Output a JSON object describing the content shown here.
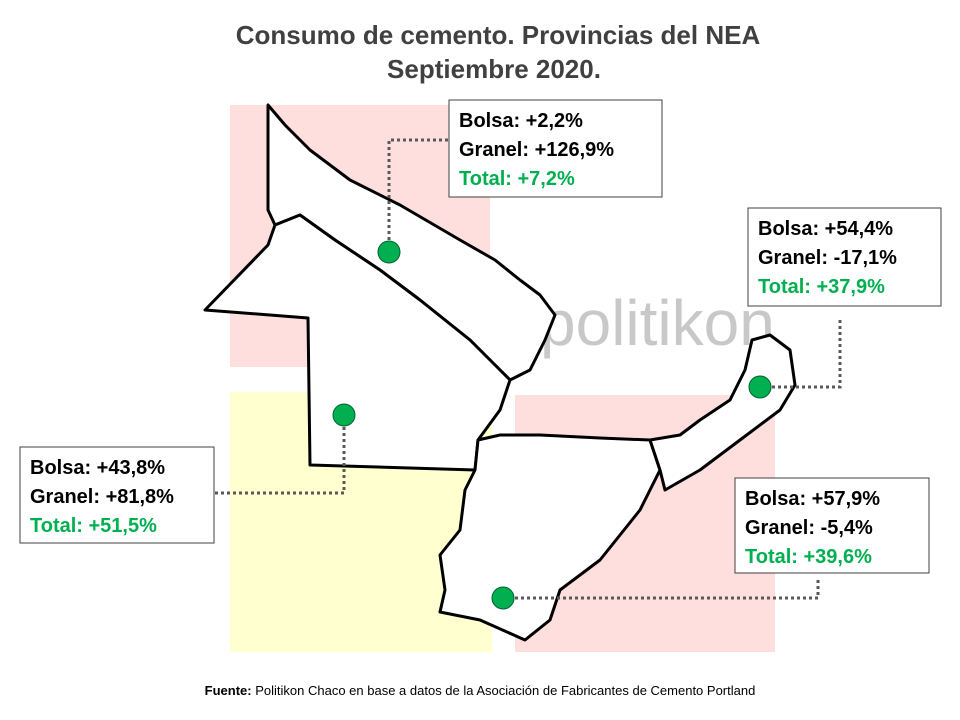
{
  "title": [
    "Consumo de cemento. Provincias del NEA",
    "Septiembre 2020."
  ],
  "watermark": "politikon",
  "callouts": [
    {
      "lines": [
        "Bolsa: +2,2%",
        "Granel: +126,9%",
        "Total: +7,2%"
      ]
    },
    {
      "lines": [
        "Bolsa: +54,4%",
        "Granel: -17,1%",
        "Total: +37,9%"
      ]
    },
    {
      "lines": [
        "Bolsa: +43,8%",
        "Granel: +81,8%",
        "Total: +51,5%"
      ]
    },
    {
      "lines": [
        "Bolsa: +57,9%",
        "Granel: -5,4%",
        "Total: +39,6%"
      ]
    }
  ],
  "source": {
    "label": "Fuente:",
    "text": "Politikon Chaco en base a datos de la Asociación de Fabricantes de Cemento Portland"
  }
}
